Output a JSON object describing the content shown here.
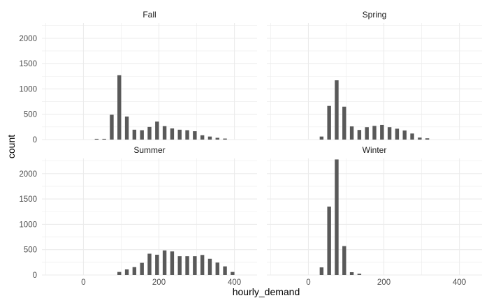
{
  "chart_data": {
    "type": "bar",
    "title": "",
    "xlabel": "hourly_demand",
    "ylabel": "count",
    "xlim": [
      -110,
      460
    ],
    "ylim": [
      0,
      2300
    ],
    "x_ticks": [
      0,
      200,
      400
    ],
    "y_ticks": [
      0,
      500,
      1000,
      1500,
      2000
    ],
    "bin_width": 20,
    "grid": true,
    "colors": {
      "bar": "#595959",
      "grid": "#ebebeb",
      "background": "#ffffff"
    },
    "facets": [
      {
        "label": "Fall",
        "bins": [
          [
            30,
            40,
            15
          ],
          [
            50,
            60,
            15
          ],
          [
            70,
            80,
            490
          ],
          [
            90,
            100,
            1270
          ],
          [
            110,
            120,
            455
          ],
          [
            130,
            140,
            195
          ],
          [
            150,
            160,
            185
          ],
          [
            170,
            180,
            250
          ],
          [
            190,
            200,
            355
          ],
          [
            210,
            220,
            265
          ],
          [
            230,
            240,
            220
          ],
          [
            250,
            260,
            195
          ],
          [
            270,
            280,
            185
          ],
          [
            290,
            300,
            165
          ],
          [
            310,
            320,
            85
          ],
          [
            330,
            340,
            60
          ],
          [
            350,
            360,
            35
          ],
          [
            370,
            380,
            20
          ]
        ]
      },
      {
        "label": "Spring",
        "bins": [
          [
            30,
            40,
            60
          ],
          [
            50,
            60,
            665
          ],
          [
            70,
            80,
            1170
          ],
          [
            90,
            100,
            650
          ],
          [
            110,
            120,
            260
          ],
          [
            130,
            140,
            190
          ],
          [
            150,
            160,
            245
          ],
          [
            170,
            180,
            270
          ],
          [
            190,
            200,
            290
          ],
          [
            210,
            220,
            245
          ],
          [
            230,
            240,
            215
          ],
          [
            250,
            260,
            180
          ],
          [
            270,
            280,
            120
          ],
          [
            290,
            300,
            40
          ],
          [
            310,
            320,
            25
          ]
        ]
      },
      {
        "label": "Summer",
        "bins": [
          [
            90,
            100,
            60
          ],
          [
            110,
            120,
            110
          ],
          [
            130,
            140,
            155
          ],
          [
            150,
            160,
            240
          ],
          [
            170,
            180,
            420
          ],
          [
            190,
            200,
            400
          ],
          [
            210,
            220,
            485
          ],
          [
            230,
            240,
            465
          ],
          [
            250,
            260,
            370
          ],
          [
            270,
            280,
            370
          ],
          [
            290,
            300,
            370
          ],
          [
            310,
            320,
            395
          ],
          [
            330,
            340,
            320
          ],
          [
            350,
            360,
            245
          ],
          [
            370,
            380,
            170
          ],
          [
            390,
            400,
            60
          ]
        ]
      },
      {
        "label": "Winter",
        "bins": [
          [
            30,
            40,
            150
          ],
          [
            50,
            60,
            1350
          ],
          [
            70,
            80,
            2280
          ],
          [
            90,
            100,
            570
          ],
          [
            110,
            120,
            55
          ],
          [
            130,
            140,
            25
          ]
        ]
      }
    ]
  }
}
